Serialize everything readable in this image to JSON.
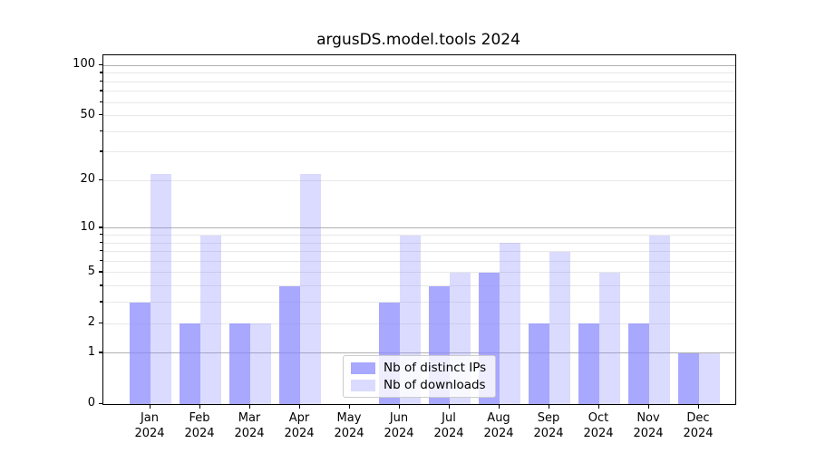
{
  "chart_data": {
    "type": "bar",
    "title": "argusDS.model.tools 2024",
    "categories": [
      "Jan 2024",
      "Feb 2024",
      "Mar 2024",
      "Apr 2024",
      "May 2024",
      "Jun 2024",
      "Jul 2024",
      "Aug 2024",
      "Sep 2024",
      "Oct 2024",
      "Nov 2024",
      "Dec 2024"
    ],
    "series": [
      {
        "name": "Nb of distinct IPs",
        "color": "rgba(136,136,255,0.73)",
        "values": [
          3,
          2,
          2,
          4,
          0,
          3,
          4,
          5,
          2,
          2,
          2,
          1
        ]
      },
      {
        "name": "Nb of downloads",
        "color": "rgba(136,136,255,0.30)",
        "values": [
          22,
          9,
          2,
          22,
          0,
          9,
          5,
          8,
          7,
          5,
          9,
          1
        ]
      }
    ],
    "xlabel": "",
    "ylabel": "",
    "yscale": "log1p",
    "ylim": [
      0,
      115
    ],
    "yticks": [
      0,
      1,
      2,
      5,
      10,
      20,
      50,
      100
    ],
    "major_gridlines": [
      1,
      10,
      100
    ],
    "minor_gridlines": [
      2,
      3,
      4,
      5,
      6,
      7,
      8,
      9,
      20,
      30,
      40,
      50,
      60,
      70,
      80,
      90
    ],
    "grid": true,
    "legend_position": "lower center-left inside plot",
    "colors": {
      "grid_major": "#b0b0b0",
      "grid_minor": "#e8e8e8",
      "axis": "#000000",
      "legend_border": "#cccccc"
    }
  }
}
